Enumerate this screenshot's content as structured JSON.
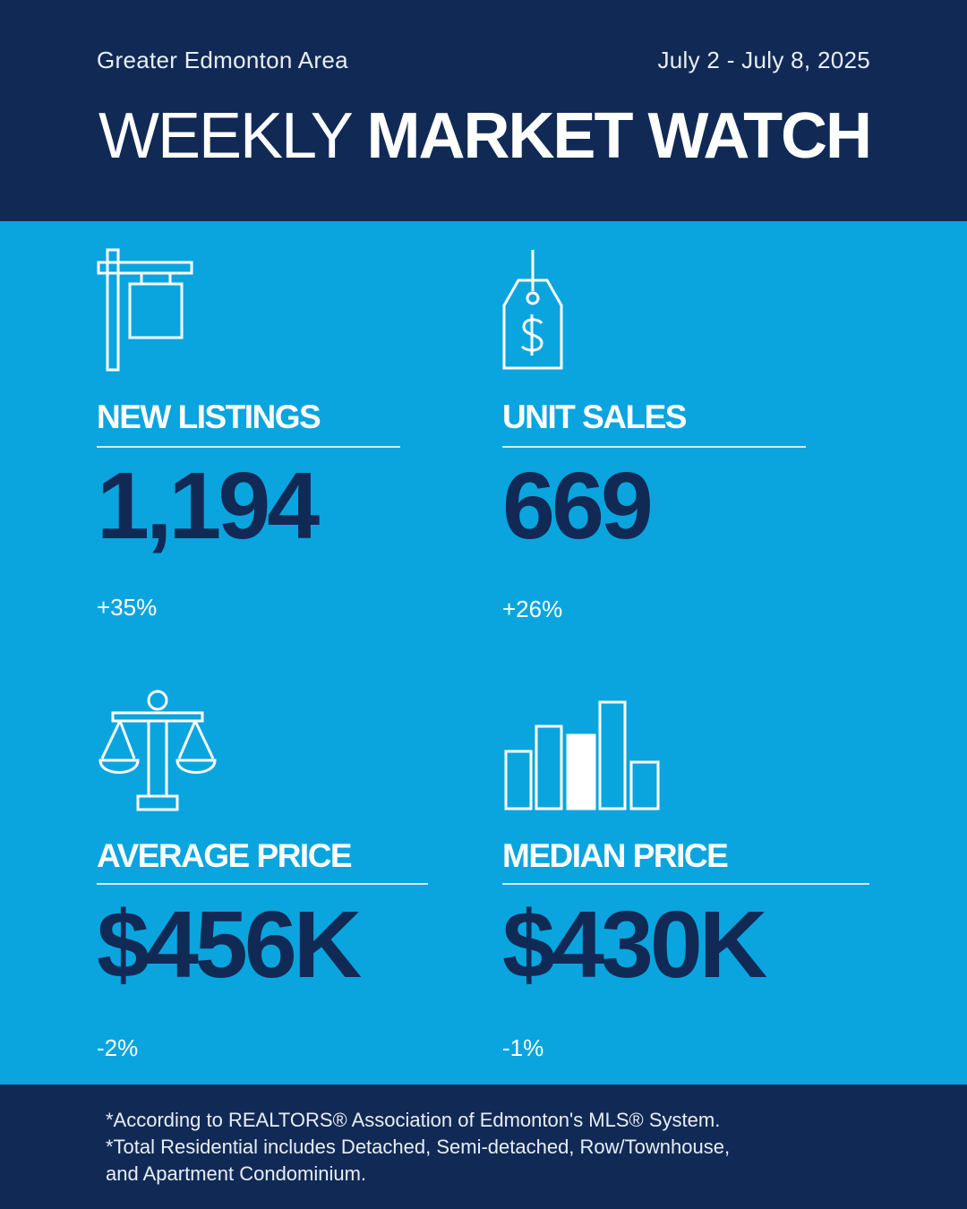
{
  "header": {
    "region": "Greater Edmonton Area",
    "dates": "July 2 - July 8, 2025",
    "title_light": "WEEKLY",
    "title_bold": "MARKET WATCH"
  },
  "stats": {
    "new_listings": {
      "label": "NEW LISTINGS",
      "value": "1,194",
      "change": "+35%",
      "icon": "for-sale-sign-icon"
    },
    "unit_sales": {
      "label": "UNIT SALES",
      "value": "669",
      "change": "+26%",
      "icon": "price-tag-icon"
    },
    "average_price": {
      "label": "AVERAGE PRICE",
      "value": "$456K",
      "change": "-2%",
      "icon": "scale-icon"
    },
    "median_price": {
      "label": "MEDIAN PRICE",
      "value": "$430K",
      "change": "-1%",
      "icon": "bar-chart-icon"
    }
  },
  "footer": {
    "note1": "*According to REALTORS® Association of Edmonton's MLS® System.",
    "note2": "*Total Residential includes Detached, Semi-detached, Row/Townhouse,",
    "note3": "and Apartment Condominium."
  },
  "colors": {
    "navy": "#112a55",
    "sky": "#0aa5df",
    "white": "#ffffff"
  }
}
